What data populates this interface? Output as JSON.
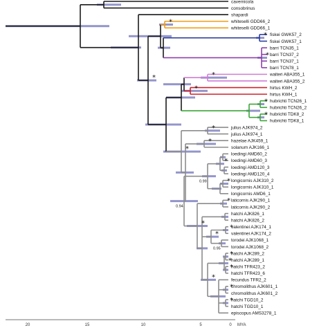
{
  "taxa": [
    "cavernicola",
    "consobrinus",
    "shapardi",
    "whiteselli GDD66_2",
    "whiteselli GDD66_1",
    "fiskei GWK57_2",
    "fiskei GWK57_1",
    "barri TCN35_1",
    "barri TCN37_2",
    "barri TCN37_1",
    "barri TCN78_1",
    "walteri ABA355_1",
    "walteri ABA355_2",
    "hirtus KWH_2",
    "hirtus KWH_1",
    "hubrichti TCN26_1",
    "hubrichti TCN26_2",
    "hubrichti TDK8_2",
    "hubrichti TDK8_1",
    "julius AJK974_2",
    "julius AJK974_1",
    "hazelae AJK459_1",
    "solanum AJK166_1",
    "loedingi AMD60_2",
    "loedingi AMD60_3",
    "loedingi AMD120_3",
    "loedingi AMD120_4",
    "longicornis AJK310_2",
    "longicornis AJK310_1",
    "longicornis AMD6_1",
    "laticornis AJK290_1",
    "laticornis AJK290_2",
    "hatchi AJK826_1",
    "hatchi AJK826_2",
    "valentinei AJK174_1",
    "valentinei AJK174_2",
    "torodei AJK1068_1",
    "torodei AJK1068_2",
    "hatchi AJK289_2",
    "hatchi AJK289_1",
    "hatchi TFR423_2",
    "hatchi TFR423_6",
    "fecundus TFR2_2",
    "chromolithus AJK601_1",
    "chromolithus AJK601_2",
    "hatchi TGD10_2",
    "hatchi TGD10_1",
    "episcopus AMS3278_1"
  ],
  "star_symbol": "*",
  "support_values": [
    "0.99",
    "0.94",
    "0.95"
  ],
  "axis": {
    "ticks": [
      "20",
      "15",
      "10",
      "5",
      "0"
    ],
    "unit": "MYA"
  },
  "colors": {
    "branch_default": "#1a1a1a",
    "branch_grey": "#8c8c8c",
    "hpd_bar": "#6f72b8",
    "clade_whiteselli": "#f39c12",
    "clade_fiskei": "#2c3e9e",
    "clade_barri": "#8e3fae",
    "clade_walteri": "#d27bd6",
    "clade_hirtus": "#d0202a",
    "clade_hubrichti": "#3aa536"
  }
}
